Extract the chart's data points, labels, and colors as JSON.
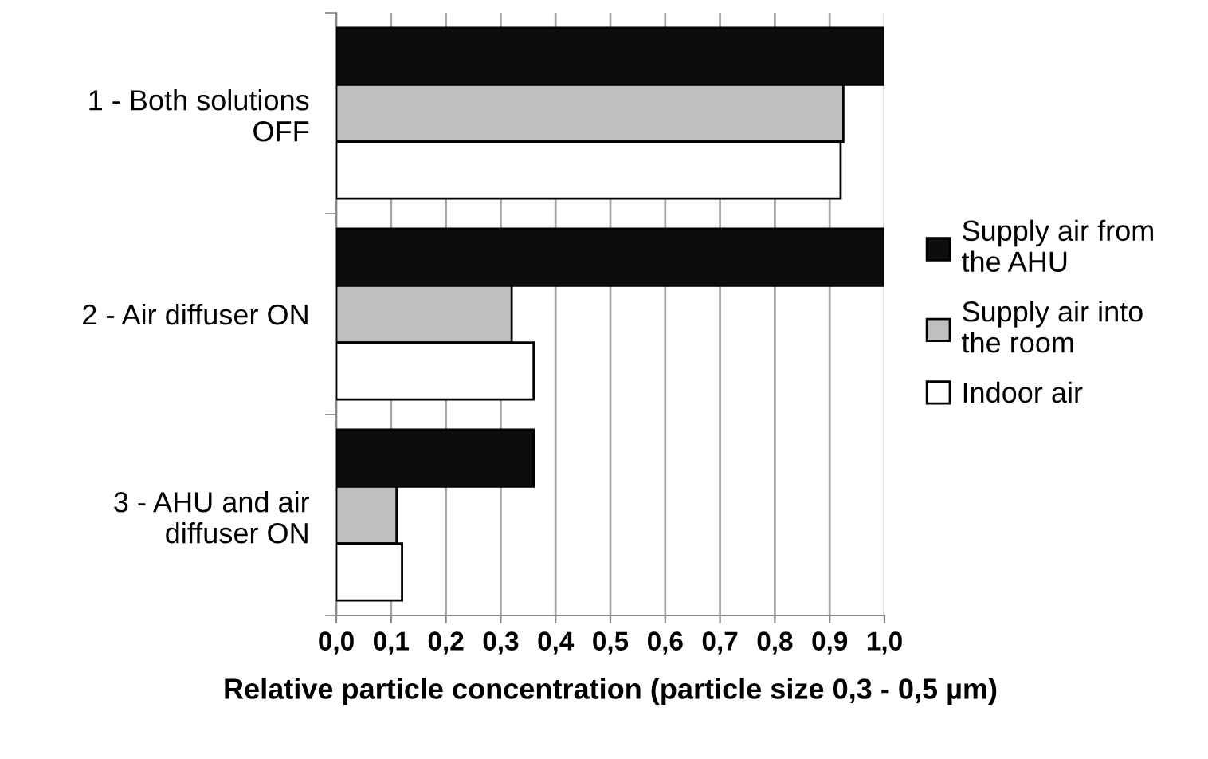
{
  "chart_data": {
    "type": "bar",
    "orientation": "horizontal",
    "xlabel": "Relative particle concentration (particle size 0,3 - 0,5 µm)",
    "categories": [
      "1 - Both solutions\nOFF",
      "2 - Air diffuser ON",
      "3 - AHU and air\ndiffuser ON"
    ],
    "series": [
      {
        "name": "Supply air from\nthe AHU",
        "color": "#0d0d0d",
        "values": [
          1.0,
          1.0,
          0.36
        ]
      },
      {
        "name": "Supply air into\nthe room",
        "color": "#bfbfbf",
        "values": [
          0.925,
          0.32,
          0.11
        ]
      },
      {
        "name": "Indoor air",
        "color": "#ffffff",
        "values": [
          0.92,
          0.36,
          0.12
        ]
      }
    ],
    "xlim": [
      0,
      1
    ],
    "xticks": [
      {
        "value": 0,
        "label": "0,0"
      },
      {
        "value": 0.1,
        "label": "0,1"
      },
      {
        "value": 0.2,
        "label": "0,2"
      },
      {
        "value": 0.3,
        "label": "0,3"
      },
      {
        "value": 0.4,
        "label": "0,4"
      },
      {
        "value": 0.5,
        "label": "0,5"
      },
      {
        "value": 0.6,
        "label": "0,6"
      },
      {
        "value": 0.7,
        "label": "0,7"
      },
      {
        "value": 0.8,
        "label": "0,8"
      },
      {
        "value": 0.9,
        "label": "0,9"
      },
      {
        "value": 1,
        "label": "1,0"
      }
    ],
    "grid": "x",
    "legend": "right"
  }
}
